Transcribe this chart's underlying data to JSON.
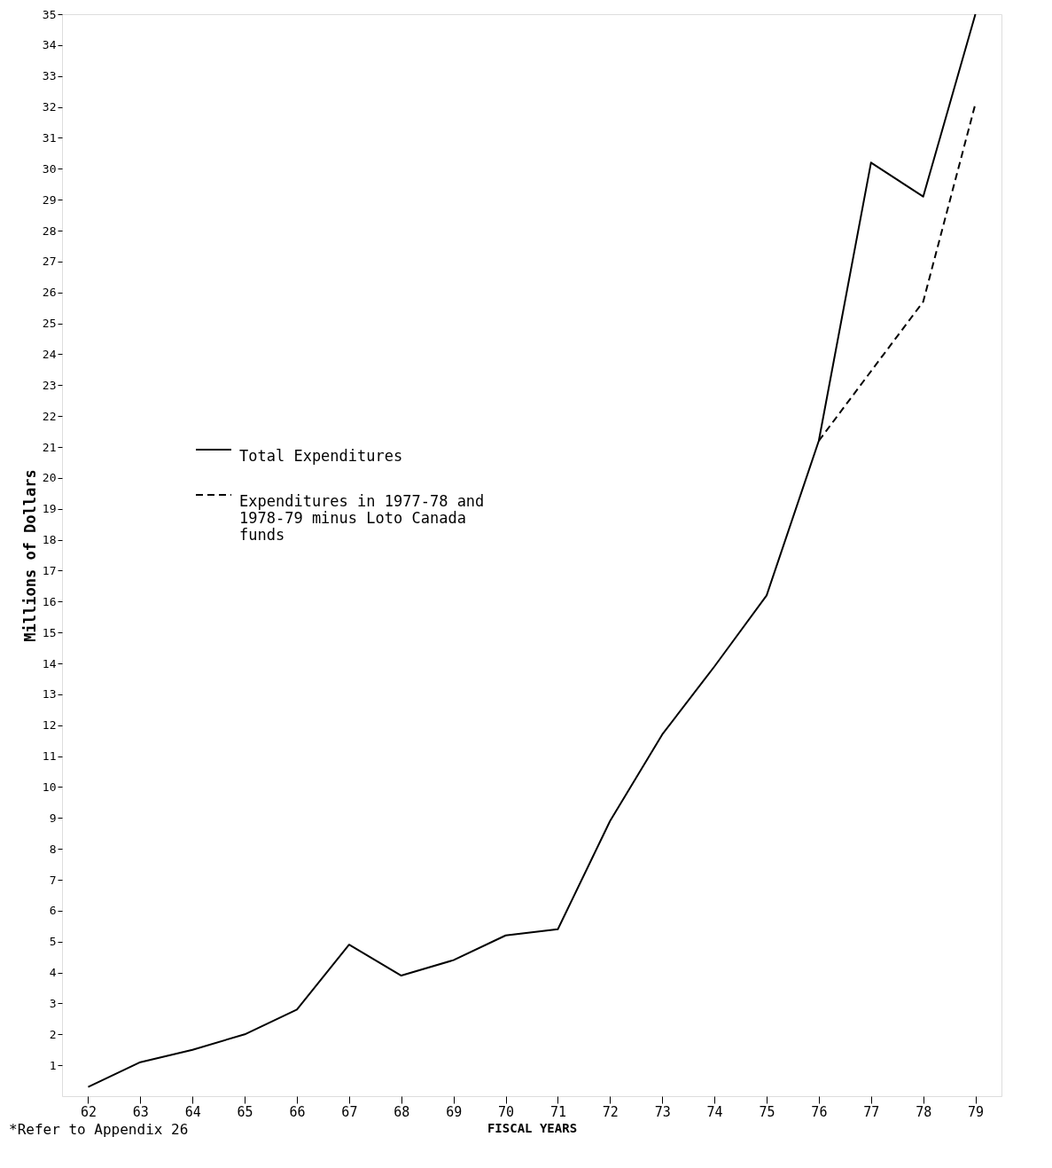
{
  "chart_data": {
    "type": "line",
    "xlabel": "FISCAL YEARS",
    "ylabel": "Millions of Dollars",
    "annotations": [
      "*Refer to Appendix 26"
    ],
    "categories": [
      "62",
      "63",
      "64",
      "65",
      "66",
      "67",
      "68",
      "69",
      "70",
      "71",
      "72",
      "73",
      "74",
      "75",
      "76",
      "77",
      "78",
      "79"
    ],
    "series": [
      {
        "name": "Total Expenditures",
        "color": "#000000",
        "line_style": "solid",
        "values": [
          0.3,
          1.1,
          1.5,
          2.0,
          2.8,
          4.9,
          3.9,
          4.4,
          5.2,
          5.4,
          8.9,
          11.7,
          13.9,
          16.2,
          21.2,
          30.2,
          29.1,
          35.0
        ]
      },
      {
        "name": "Expenditures in 1977-78 and 1978-79 minus Loto Canada funds",
        "color": "#000000",
        "line_style": "dashed",
        "values": [
          null,
          null,
          null,
          null,
          null,
          null,
          null,
          null,
          null,
          null,
          null,
          null,
          null,
          null,
          21.2,
          null,
          25.7,
          32.1
        ]
      }
    ],
    "ylim": [
      0,
      35
    ],
    "yticks": [
      1,
      2,
      3,
      4,
      5,
      6,
      7,
      8,
      9,
      10,
      11,
      12,
      13,
      14,
      15,
      16,
      17,
      18,
      19,
      20,
      21,
      22,
      23,
      24,
      25,
      26,
      27,
      28,
      29,
      30,
      31,
      32,
      33,
      34,
      35
    ],
    "grid": false,
    "legend": "left",
    "marker": "none"
  }
}
